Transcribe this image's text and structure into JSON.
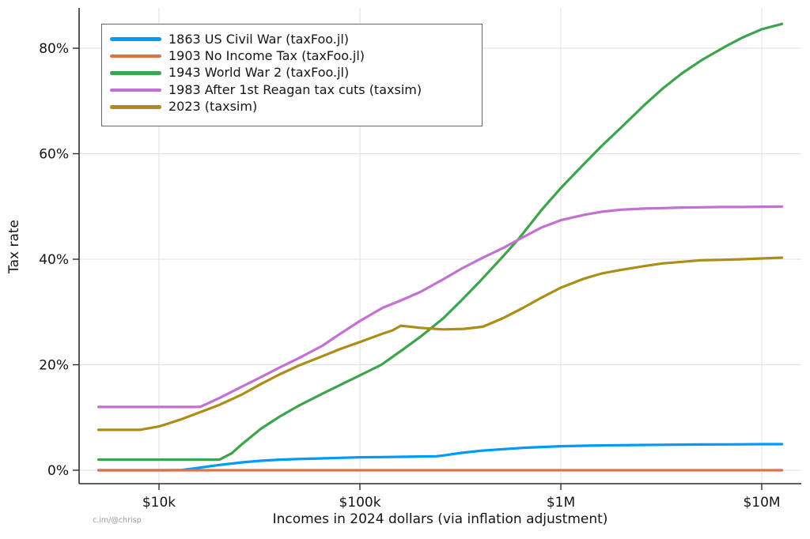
{
  "chart_data": {
    "type": "line",
    "title": "",
    "xlabel": "Incomes in 2024 dollars (via inflation adjustment)",
    "ylabel": "Tax rate",
    "watermark": "c.im/@chrisp",
    "x_scale": "log10",
    "x_range": [
      5000,
      12600000
    ],
    "ylim_pct": [
      -3,
      88
    ],
    "grid": true,
    "legend_position": "top-left",
    "axis_color": "#2f2f2f",
    "grid_color": "#e4e4e4",
    "x_ticks": [
      {
        "value": 10000,
        "label": "$10k"
      },
      {
        "value": 100000,
        "label": "$100k"
      },
      {
        "value": 1000000,
        "label": "$1M"
      },
      {
        "value": 10000000,
        "label": "$10M"
      }
    ],
    "y_ticks": [
      {
        "value": 0,
        "label": "0%"
      },
      {
        "value": 20,
        "label": "20%"
      },
      {
        "value": 40,
        "label": "40%"
      },
      {
        "value": 60,
        "label": "60%"
      },
      {
        "value": 80,
        "label": "80%"
      }
    ],
    "series": [
      {
        "name": "1863 US Civil War (taxFoo.jl)",
        "color": "#009af9",
        "points": [
          [
            5000,
            0
          ],
          [
            8000,
            0
          ],
          [
            11000,
            0
          ],
          [
            13000,
            0.05
          ],
          [
            16000,
            0.5
          ],
          [
            20000,
            1.0
          ],
          [
            26000,
            1.5
          ],
          [
            32000,
            1.8
          ],
          [
            40000,
            2.0
          ],
          [
            52000,
            2.15
          ],
          [
            65000,
            2.25
          ],
          [
            80000,
            2.35
          ],
          [
            100000,
            2.45
          ],
          [
            130000,
            2.5
          ],
          [
            160000,
            2.55
          ],
          [
            200000,
            2.6
          ],
          [
            240000,
            2.65
          ],
          [
            260000,
            2.8
          ],
          [
            320000,
            3.3
          ],
          [
            400000,
            3.7
          ],
          [
            520000,
            4.0
          ],
          [
            650000,
            4.25
          ],
          [
            800000,
            4.4
          ],
          [
            1000000,
            4.55
          ],
          [
            1300000,
            4.65
          ],
          [
            1600000,
            4.7
          ],
          [
            2000000,
            4.75
          ],
          [
            2600000,
            4.8
          ],
          [
            3200000,
            4.83
          ],
          [
            4000000,
            4.86
          ],
          [
            5000000,
            4.88
          ],
          [
            6500000,
            4.9
          ],
          [
            8000000,
            4.92
          ],
          [
            10000000,
            4.94
          ],
          [
            12600000,
            4.95
          ]
        ]
      },
      {
        "name": "1903 No Income Tax (taxFoo.jl)",
        "color": "#e26f46",
        "points": [
          [
            5000,
            0
          ],
          [
            100000,
            0
          ],
          [
            1000000,
            0
          ],
          [
            12600000,
            0
          ]
        ]
      },
      {
        "name": "1943 World War 2 (taxFoo.jl)",
        "color": "#3da44d",
        "points": [
          [
            5000,
            2
          ],
          [
            10000,
            2
          ],
          [
            15000,
            2
          ],
          [
            20000,
            2
          ],
          [
            23000,
            3.2
          ],
          [
            26000,
            5.0
          ],
          [
            32000,
            7.8
          ],
          [
            40000,
            10.2
          ],
          [
            50000,
            12.3
          ],
          [
            65000,
            14.5
          ],
          [
            80000,
            16.2
          ],
          [
            100000,
            18.0
          ],
          [
            128000,
            20.0
          ],
          [
            160000,
            22.6
          ],
          [
            200000,
            25.3
          ],
          [
            260000,
            28.8
          ],
          [
            320000,
            32.2
          ],
          [
            400000,
            36.0
          ],
          [
            520000,
            40.7
          ],
          [
            615000,
            43.8
          ],
          [
            700000,
            46.5
          ],
          [
            800000,
            49.3
          ],
          [
            1000000,
            53.5
          ],
          [
            1300000,
            58.0
          ],
          [
            1600000,
            61.5
          ],
          [
            2000000,
            65.0
          ],
          [
            2600000,
            69.2
          ],
          [
            3200000,
            72.3
          ],
          [
            4000000,
            75.2
          ],
          [
            5000000,
            77.7
          ],
          [
            6500000,
            80.2
          ],
          [
            8000000,
            82.0
          ],
          [
            10000000,
            83.6
          ],
          [
            12600000,
            84.6
          ]
        ]
      },
      {
        "name": "1983 After 1st Reagan tax cuts (taxsim)",
        "color": "#c271d2",
        "points": [
          [
            5000,
            12
          ],
          [
            10000,
            12
          ],
          [
            16000,
            12
          ],
          [
            20000,
            13.7
          ],
          [
            26000,
            15.9
          ],
          [
            32000,
            17.6
          ],
          [
            40000,
            19.5
          ],
          [
            50000,
            21.3
          ],
          [
            65000,
            23.6
          ],
          [
            80000,
            25.9
          ],
          [
            100000,
            28.3
          ],
          [
            130000,
            30.8
          ],
          [
            160000,
            32.2
          ],
          [
            200000,
            33.8
          ],
          [
            260000,
            36.2
          ],
          [
            320000,
            38.2
          ],
          [
            400000,
            40.1
          ],
          [
            520000,
            42.2
          ],
          [
            650000,
            44.2
          ],
          [
            800000,
            46.0
          ],
          [
            1000000,
            47.4
          ],
          [
            1300000,
            48.4
          ],
          [
            1600000,
            49.0
          ],
          [
            2000000,
            49.4
          ],
          [
            2600000,
            49.6
          ],
          [
            3200000,
            49.7
          ],
          [
            4000000,
            49.8
          ],
          [
            5000000,
            49.85
          ],
          [
            6500000,
            49.9
          ],
          [
            8000000,
            49.9
          ],
          [
            10000000,
            49.95
          ],
          [
            12600000,
            50.0
          ]
        ]
      },
      {
        "name": "2023 (taxsim)",
        "color": "#ac8d18",
        "points": [
          [
            5000,
            7.65
          ],
          [
            8000,
            7.65
          ],
          [
            10000,
            8.3
          ],
          [
            13000,
            9.7
          ],
          [
            16000,
            11.0
          ],
          [
            20000,
            12.4
          ],
          [
            26000,
            14.4
          ],
          [
            32000,
            16.3
          ],
          [
            40000,
            18.2
          ],
          [
            50000,
            19.9
          ],
          [
            65000,
            21.6
          ],
          [
            80000,
            23.0
          ],
          [
            100000,
            24.3
          ],
          [
            130000,
            25.9
          ],
          [
            145000,
            26.5
          ],
          [
            160000,
            27.4
          ],
          [
            200000,
            27.0
          ],
          [
            260000,
            26.7
          ],
          [
            330000,
            26.8
          ],
          [
            410000,
            27.2
          ],
          [
            520000,
            28.9
          ],
          [
            650000,
            30.8
          ],
          [
            800000,
            32.7
          ],
          [
            1000000,
            34.6
          ],
          [
            1300000,
            36.3
          ],
          [
            1600000,
            37.3
          ],
          [
            2000000,
            38.0
          ],
          [
            2600000,
            38.7
          ],
          [
            3200000,
            39.2
          ],
          [
            4000000,
            39.5
          ],
          [
            5000000,
            39.8
          ],
          [
            6500000,
            39.9
          ],
          [
            8000000,
            40.0
          ],
          [
            10000000,
            40.15
          ],
          [
            12600000,
            40.3
          ]
        ]
      }
    ]
  }
}
